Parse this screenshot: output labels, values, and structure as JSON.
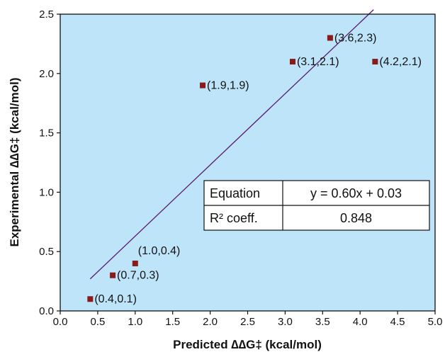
{
  "chart_data": {
    "type": "scatter",
    "title": "",
    "xlabel": "Predicted ∆∆G‡ (kcal/mol)",
    "ylabel": "Experimental ∆∆G‡ (kcal/mol)",
    "xlim": [
      0.0,
      5.0
    ],
    "ylim": [
      0.0,
      2.5
    ],
    "x_ticks": [
      "0.0",
      "0.5",
      "1.0",
      "1.5",
      "2.0",
      "2.5",
      "3.0",
      "3.5",
      "4.0",
      "4.5",
      "5.0"
    ],
    "y_ticks": [
      "0.0",
      "0.5",
      "1.0",
      "1.5",
      "2.0",
      "2.5"
    ],
    "grid": false,
    "colors": {
      "plot_background": "#bde4f8",
      "marker": "#8b1a1a",
      "fit_line": "#5a1a6e"
    },
    "points": [
      {
        "x": 0.4,
        "y": 0.1,
        "label": "(0.4,0.1)"
      },
      {
        "x": 0.7,
        "y": 0.3,
        "label": "(0.7,0.3)"
      },
      {
        "x": 1.0,
        "y": 0.4,
        "label": "(1.0,0.4)"
      },
      {
        "x": 1.9,
        "y": 1.9,
        "label": "(1.9,1.9)"
      },
      {
        "x": 3.1,
        "y": 2.1,
        "label": "(3.1,2.1)"
      },
      {
        "x": 3.6,
        "y": 2.3,
        "label": "(3.6,2.3)"
      },
      {
        "x": 4.2,
        "y": 2.1,
        "label": "(4.2,2.1)"
      }
    ],
    "fit_line": {
      "slope": 0.6,
      "intercept": 0.03,
      "x_range": [
        0.4,
        4.18
      ]
    },
    "stats_table": {
      "rows": [
        {
          "name": "Equation",
          "value": "y = 0.60x + 0.03"
        },
        {
          "name": "R² coeff.",
          "value": "0.848"
        }
      ]
    }
  }
}
